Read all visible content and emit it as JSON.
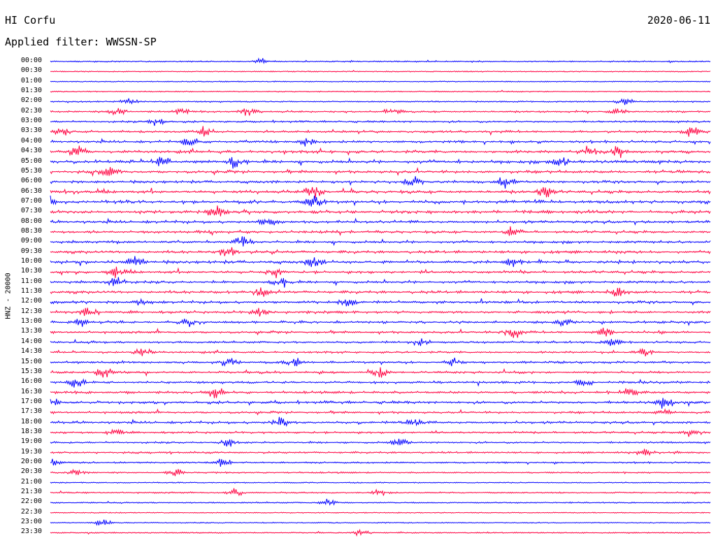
{
  "header": {
    "station": "HI Corfu",
    "date": "2020-06-11",
    "filter": "Applied filter: WWSSN-SP"
  },
  "chart_data": {
    "type": "line",
    "title": "HI Corfu",
    "subtitle": "Applied filter: WWSSN-SP",
    "ylabel": "HNZ - 20000",
    "xlabel": "",
    "row_colors": [
      "#0000ff",
      "#ff0040"
    ],
    "grid": false,
    "rows": [
      {
        "time": "00:00",
        "activity": 0.15,
        "events": [
          0.32
        ]
      },
      {
        "time": "00:30",
        "activity": 0.05,
        "events": []
      },
      {
        "time": "01:00",
        "activity": 0.05,
        "events": []
      },
      {
        "time": "01:30",
        "activity": 0.08,
        "events": []
      },
      {
        "time": "02:00",
        "activity": 0.15,
        "events": [
          0.12,
          0.87
        ]
      },
      {
        "time": "02:30",
        "activity": 0.3,
        "events": [
          0.1,
          0.2,
          0.3,
          0.52,
          0.86
        ]
      },
      {
        "time": "03:00",
        "activity": 0.35,
        "events": [
          0.16
        ]
      },
      {
        "time": "03:30",
        "activity": 0.45,
        "events": [
          0.02,
          0.23,
          0.97
        ]
      },
      {
        "time": "04:00",
        "activity": 0.5,
        "events": [
          0.21,
          0.39
        ]
      },
      {
        "time": "04:30",
        "activity": 0.6,
        "events": [
          0.04,
          0.82,
          0.86
        ]
      },
      {
        "time": "05:00",
        "activity": 0.75,
        "events": [
          0.17,
          0.28,
          0.77
        ]
      },
      {
        "time": "05:30",
        "activity": 0.6,
        "events": [
          0.09
        ]
      },
      {
        "time": "06:00",
        "activity": 0.55,
        "events": [
          0.55,
          0.69
        ]
      },
      {
        "time": "06:30",
        "activity": 0.7,
        "events": [
          0.4,
          0.75
        ]
      },
      {
        "time": "07:00",
        "activity": 0.75,
        "events": [
          0.0,
          0.4
        ]
      },
      {
        "time": "07:30",
        "activity": 0.7,
        "events": [
          0.25
        ]
      },
      {
        "time": "08:00",
        "activity": 0.6,
        "events": [
          0.33
        ]
      },
      {
        "time": "08:30",
        "activity": 0.55,
        "events": [
          0.7
        ]
      },
      {
        "time": "09:00",
        "activity": 0.55,
        "events": [
          0.29
        ]
      },
      {
        "time": "09:30",
        "activity": 0.6,
        "events": [
          0.27
        ]
      },
      {
        "time": "10:00",
        "activity": 0.65,
        "events": [
          0.13,
          0.4,
          0.7
        ]
      },
      {
        "time": "10:30",
        "activity": 0.6,
        "events": [
          0.1,
          0.34
        ]
      },
      {
        "time": "11:00",
        "activity": 0.55,
        "events": [
          0.1,
          0.35
        ]
      },
      {
        "time": "11:30",
        "activity": 0.6,
        "events": [
          0.32,
          0.86
        ]
      },
      {
        "time": "12:00",
        "activity": 0.55,
        "events": [
          0.14,
          0.45
        ]
      },
      {
        "time": "12:30",
        "activity": 0.55,
        "events": [
          0.06,
          0.32
        ]
      },
      {
        "time": "13:00",
        "activity": 0.5,
        "events": [
          0.05,
          0.21,
          0.78
        ]
      },
      {
        "time": "13:30",
        "activity": 0.45,
        "events": [
          0.7,
          0.84
        ]
      },
      {
        "time": "14:00",
        "activity": 0.4,
        "events": [
          0.56,
          0.85
        ]
      },
      {
        "time": "14:30",
        "activity": 0.35,
        "events": [
          0.14,
          0.9
        ]
      },
      {
        "time": "15:00",
        "activity": 0.45,
        "events": [
          0.27,
          0.37,
          0.61
        ]
      },
      {
        "time": "15:30",
        "activity": 0.45,
        "events": [
          0.08,
          0.5
        ]
      },
      {
        "time": "16:00",
        "activity": 0.45,
        "events": [
          0.04,
          0.81
        ]
      },
      {
        "time": "16:30",
        "activity": 0.5,
        "events": [
          0.25,
          0.88
        ]
      },
      {
        "time": "17:00",
        "activity": 0.6,
        "events": [
          0.0,
          0.93
        ]
      },
      {
        "time": "17:30",
        "activity": 0.4,
        "events": [
          0.93
        ]
      },
      {
        "time": "18:00",
        "activity": 0.5,
        "events": [
          0.35,
          0.55
        ]
      },
      {
        "time": "18:30",
        "activity": 0.4,
        "events": [
          0.1,
          0.97
        ]
      },
      {
        "time": "19:00",
        "activity": 0.3,
        "events": [
          0.27,
          0.53
        ]
      },
      {
        "time": "19:30",
        "activity": 0.3,
        "events": [
          0.9
        ]
      },
      {
        "time": "20:00",
        "activity": 0.25,
        "events": [
          0.0,
          0.26
        ]
      },
      {
        "time": "20:30",
        "activity": 0.2,
        "events": [
          0.04,
          0.19
        ]
      },
      {
        "time": "21:00",
        "activity": 0.08,
        "events": []
      },
      {
        "time": "21:30",
        "activity": 0.2,
        "events": [
          0.28,
          0.5
        ]
      },
      {
        "time": "22:00",
        "activity": 0.12,
        "events": [
          0.42
        ]
      },
      {
        "time": "22:30",
        "activity": 0.05,
        "events": []
      },
      {
        "time": "23:00",
        "activity": 0.08,
        "events": [
          0.08
        ]
      },
      {
        "time": "23:30",
        "activity": 0.12,
        "events": [
          0.47
        ]
      }
    ]
  }
}
